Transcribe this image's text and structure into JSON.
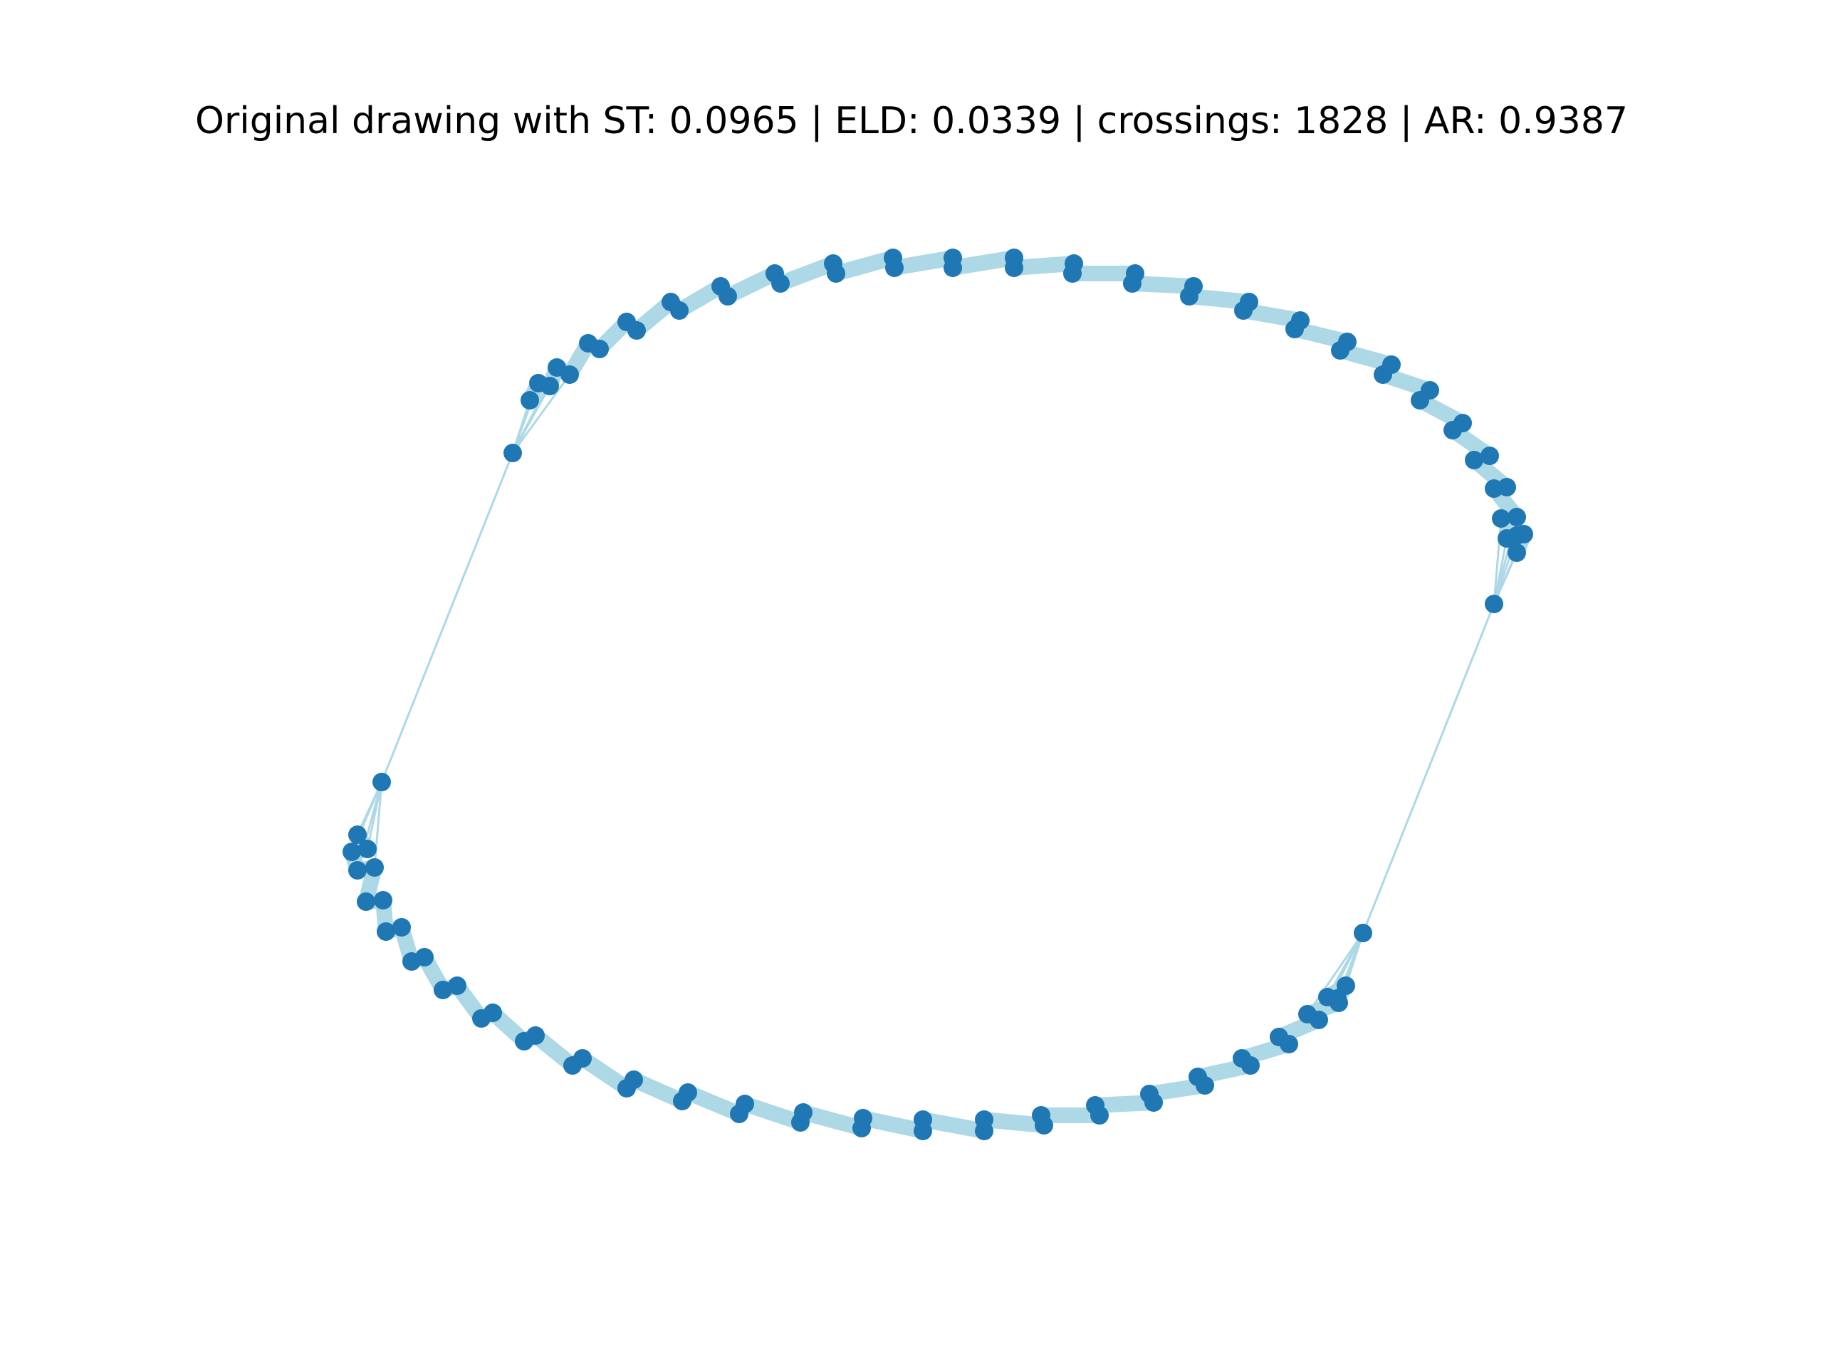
{
  "title": "Original drawing with ST: 0.0965 | ELD: 0.0339 | crossings: 1828 | AR: 0.9387",
  "colors": {
    "node": "#1f77b4",
    "edge": "#add8e6",
    "background": "#ffffff"
  }
}
